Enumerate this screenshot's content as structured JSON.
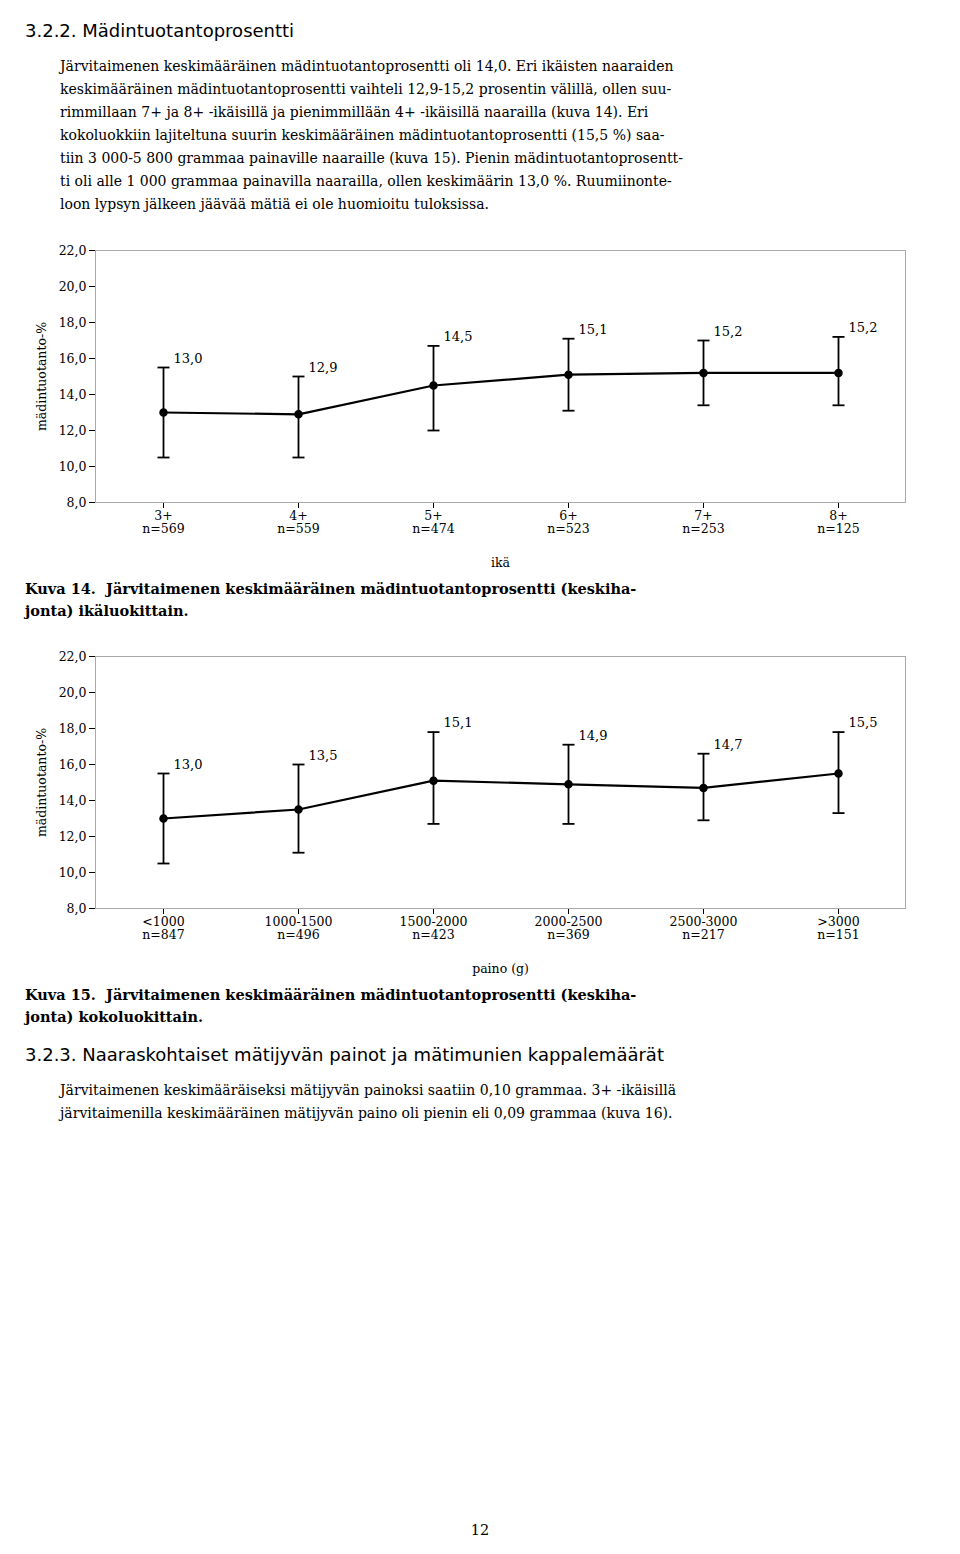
{
  "title": "3.2.2. Mädintuotantoprosentti",
  "paragraph_lines": [
    "Järvitaimenen keskimääräinen mädintuotantoprosentti oli 14,0. Eri ikäisten naaraiden",
    "keskimääräinen mädintuotantoprosentti vaihteli 12,9-15,2 prosentin välillä, ollen suu-",
    "rimmillaan 7+ ja 8+ -ikäisillä ja pienimmillään 4+ -ikäisillä naarailla (kuva 14). Eri",
    "kokoluokkiin lajiteltuna suurin keskimääräinen mädintuotantoprosentti (15,5 %) saa-",
    "tiin 3 000-5 800 grammaa painaville naaraille (kuva 15). Pienin mädintuotantoprosentt-",
    "ti oli alle 1 000 grammaa painavilla naarailla, ollen keskimäärin 13,0 %. Ruumiinonte-",
    "loon lypsyn jälkeen jäävää mätiä ei ole huomioitu tuloksissa."
  ],
  "chart_data": [
    {
      "type": "line",
      "categories": [
        "3+\nn=569",
        "4+\nn=559",
        "5+\nn=474",
        "6+\nn=523",
        "7+\nn=253",
        "8+\nn=125"
      ],
      "values": [
        13.0,
        12.9,
        14.5,
        15.1,
        15.2,
        15.2
      ],
      "value_labels": [
        "13,0",
        "12,9",
        "14,5",
        "15,1",
        "15,2",
        "15,2"
      ],
      "err_lower": [
        2.5,
        2.4,
        2.5,
        2.0,
        1.8,
        1.8
      ],
      "err_upper": [
        2.5,
        2.1,
        2.2,
        2.0,
        1.8,
        2.0
      ],
      "color": "black",
      "marker": "circle",
      "line_style": "solid",
      "data_labels": true,
      "grid": false,
      "ylabel": "mädintuotanto-%",
      "xlabel": "ikä",
      "ylim": [
        8.0,
        22.0
      ],
      "yticks": [
        {
          "value": 8.0,
          "label": "8,0"
        },
        {
          "value": 10.0,
          "label": "10,0"
        },
        {
          "value": 12.0,
          "label": "12,0"
        },
        {
          "value": 14.0,
          "label": "14,0"
        },
        {
          "value": 16.0,
          "label": "16,0"
        },
        {
          "value": 18.0,
          "label": "18,0"
        },
        {
          "value": 20.0,
          "label": "20,0"
        },
        {
          "value": 22.0,
          "label": "22,0"
        }
      ],
      "caption_lines": [
        "Kuva 14.  Järvitaimenen keskimääräinen mädintuotantoprosentti (keskiha-",
        "jonta) ikäluokittain."
      ]
    },
    {
      "type": "line",
      "categories": [
        "<1000\nn=847",
        "1000-1500\nn=496",
        "1500-2000\nn=423",
        "2000-2500\nn=369",
        "2500-3000\nn=217",
        ">3000\nn=151"
      ],
      "values": [
        13.0,
        13.5,
        15.1,
        14.9,
        14.7,
        15.5
      ],
      "value_labels": [
        "13,0",
        "13,5",
        "15,1",
        "14,9",
        "14,7",
        "15,5"
      ],
      "err_lower": [
        2.5,
        2.4,
        2.4,
        2.2,
        1.8,
        2.2
      ],
      "err_upper": [
        2.5,
        2.5,
        2.7,
        2.2,
        1.9,
        2.3
      ],
      "color": "black",
      "marker": "circle",
      "line_style": "solid",
      "data_labels": true,
      "grid": false,
      "ylabel": "mädintuotanto-%",
      "xlabel": "paino (g)",
      "ylim": [
        8.0,
        22.0
      ],
      "yticks": [
        {
          "value": 8.0,
          "label": "8,0"
        },
        {
          "value": 10.0,
          "label": "10,0"
        },
        {
          "value": 12.0,
          "label": "12,0"
        },
        {
          "value": 14.0,
          "label": "14,0"
        },
        {
          "value": 16.0,
          "label": "16,0"
        },
        {
          "value": 18.0,
          "label": "18,0"
        },
        {
          "value": 20.0,
          "label": "20,0"
        },
        {
          "value": 22.0,
          "label": "22,0"
        }
      ],
      "caption_lines": [
        "Kuva 15.  Järvitaimenen keskimääräinen mädintuotantoprosentti (keskiha-",
        "jonta) kokoluokittain."
      ]
    }
  ],
  "section3": "3.2.3. Naaraskohtaiset mätijyvän painot ja mätimunien kappalemäärät",
  "paragraph3_lines": [
    "Järvitaimenen keskimääräiseksi mätijyvän painoksi saatiin 0,10 grammaa. 3+ -ikäisillä",
    "järvitaimenilla keskimääräinen mätijyvän paino oli pienin eli 0,09 grammaa (kuva 16)."
  ],
  "page_number": "12"
}
